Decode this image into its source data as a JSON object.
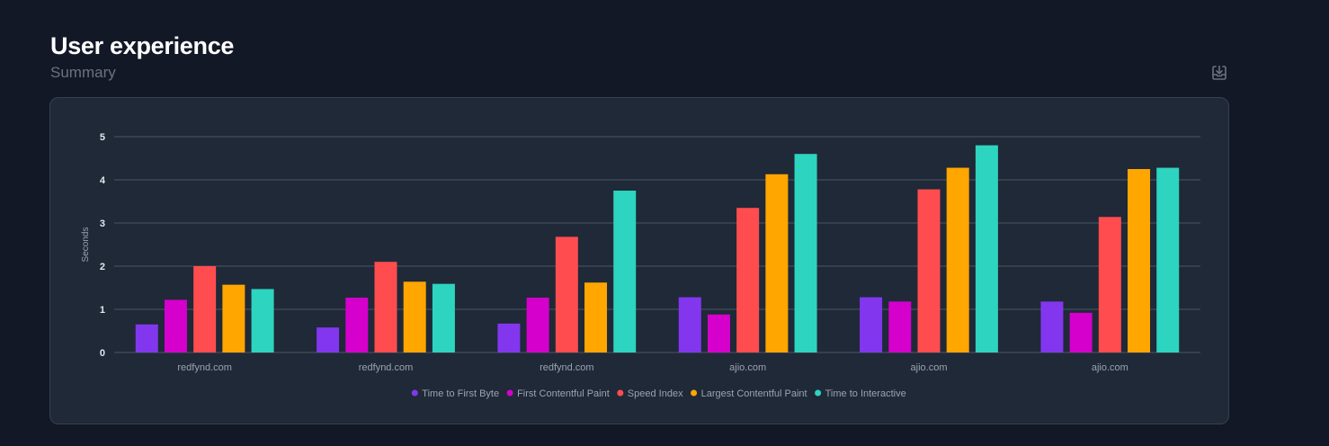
{
  "header": {
    "title": "User experience",
    "subtitle": "Summary",
    "export_icon": "download-tray-icon"
  },
  "colors": {
    "background": "#121826",
    "card": "#1f2937",
    "grid": "#4b5563",
    "tick_text": "#e5e7eb",
    "label_text": "#9ca3af"
  },
  "chart_data": {
    "type": "bar",
    "title": "",
    "xlabel": "",
    "ylabel": "Seconds",
    "ylim": [
      0,
      5
    ],
    "yticks": [
      0,
      1,
      2,
      3,
      4,
      5
    ],
    "grid": true,
    "legend_position": "bottom-center",
    "categories": [
      "redfynd.com",
      "redfynd.com",
      "redfynd.com",
      "ajio.com",
      "ajio.com",
      "ajio.com"
    ],
    "series": [
      {
        "name": "Time to First Byte",
        "color": "#8237ee",
        "values": [
          0.65,
          0.58,
          0.67,
          1.28,
          1.28,
          1.18
        ]
      },
      {
        "name": "First Contentful Paint",
        "color": "#d500cc",
        "values": [
          1.22,
          1.27,
          1.27,
          0.88,
          1.18,
          0.92
        ]
      },
      {
        "name": "Speed Index",
        "color": "#ff4d4f",
        "values": [
          2.0,
          2.1,
          2.68,
          3.35,
          3.78,
          3.14
        ]
      },
      {
        "name": "Largest Contentful Paint",
        "color": "#ffa600",
        "values": [
          1.57,
          1.64,
          1.62,
          4.13,
          4.28,
          4.25
        ]
      },
      {
        "name": "Time to Interactive",
        "color": "#2dd4bf",
        "values": [
          1.47,
          1.59,
          3.75,
          4.6,
          4.8,
          4.28
        ]
      }
    ]
  }
}
